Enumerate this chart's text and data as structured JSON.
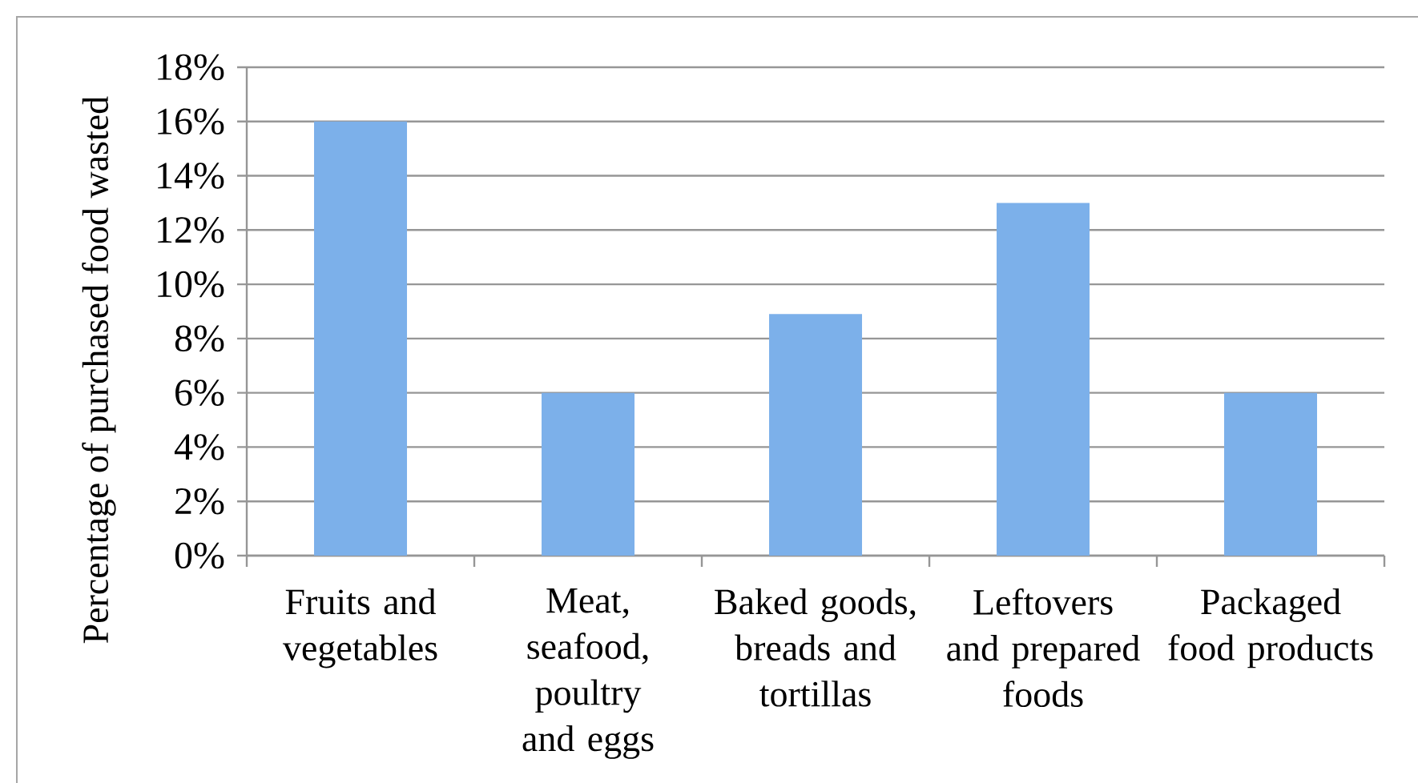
{
  "chart_data": {
    "type": "bar",
    "ylabel": "Percentage of purchased food wasted",
    "categories": [
      "Fruits and vegetables",
      "Meat, seafood, poultry and eggs",
      "Baked goods, breads and tortillas",
      "Leftovers and prepared foods",
      "Packaged food products"
    ],
    "values": [
      16,
      6,
      8.9,
      13,
      6
    ],
    "color": "#7cb0ea",
    "ylim": [
      0,
      18
    ],
    "yticks": [
      {
        "value": 0,
        "label": "0%"
      },
      {
        "value": 2,
        "label": "2%"
      },
      {
        "value": 4,
        "label": "4%"
      },
      {
        "value": 6,
        "label": "6%"
      },
      {
        "value": 8,
        "label": "8%"
      },
      {
        "value": 10,
        "label": "10%"
      },
      {
        "value": 12,
        "label": "12%"
      },
      {
        "value": 14,
        "label": "14%"
      },
      {
        "value": 16,
        "label": "16%"
      },
      {
        "value": 18,
        "label": "18%"
      }
    ],
    "grid": "y"
  }
}
